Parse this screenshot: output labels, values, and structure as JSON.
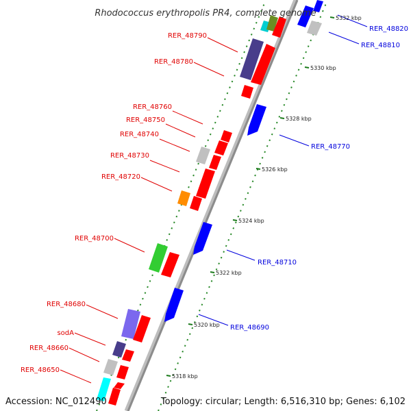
{
  "header": {
    "title": "Rhodococcus erythropolis PR4, complete genome"
  },
  "footer": {
    "accession": "Accession: NC_012490",
    "topology": "Topology: circular; Length: 6,516,310 bp; Genes: 6,102"
  },
  "colors": {
    "axis": "#8c8c8c",
    "tick_minor": "#2a8a2a",
    "label_left": "#e00000",
    "label_right": "#0000dd"
  },
  "ticks": [
    "5318 kbp",
    "5320 kbp",
    "5322 kbp",
    "5324 kbp",
    "5326 kbp",
    "5328 kbp",
    "5330 kbp",
    "5332 kbp"
  ],
  "genes": [
    {
      "id": "RER_48650",
      "label": "RER_48650",
      "side": "left",
      "color": "#00ffff"
    },
    {
      "id": "RER_48660",
      "label": "RER_48660",
      "side": "left",
      "color": "#c0c0c0"
    },
    {
      "id": "sodA",
      "label": "sodA",
      "side": "left",
      "color": "#483d8b"
    },
    {
      "id": "RER_48680",
      "label": "RER_48680",
      "side": "left",
      "color": "#7b68ee"
    },
    {
      "id": "RER_48690",
      "label": "RER_48690",
      "side": "right",
      "color": "#0000ff"
    },
    {
      "id": "RER_48700",
      "label": "RER_48700",
      "side": "left",
      "color": "#32cd32"
    },
    {
      "id": "RER_48710",
      "label": "RER_48710",
      "side": "right",
      "color": "#0000ff"
    },
    {
      "id": "RER_48720",
      "label": "RER_48720",
      "side": "left",
      "color": "#ff8c00"
    },
    {
      "id": "RER_48730",
      "label": "RER_48730",
      "side": "left",
      "color": "#ff0000"
    },
    {
      "id": "RER_48740",
      "label": "RER_48740",
      "side": "left",
      "color": "#c0c0c0"
    },
    {
      "id": "RER_48750",
      "label": "RER_48750",
      "side": "left",
      "color": "#ff0000"
    },
    {
      "id": "RER_48760",
      "label": "RER_48760",
      "side": "left",
      "color": "#ff0000"
    },
    {
      "id": "RER_48770",
      "label": "RER_48770",
      "side": "right",
      "color": "#0000ff"
    },
    {
      "id": "RER_48780",
      "label": "RER_48780",
      "side": "left",
      "color": "#ff0000"
    },
    {
      "id": "RER_48790",
      "label": "RER_48790",
      "side": "left",
      "color": "#483d8b"
    },
    {
      "id": "RER_48810",
      "label": "RER_48810",
      "side": "right",
      "color": "#c0c0c0"
    },
    {
      "id": "RER_48820",
      "label": "RER_48820",
      "side": "right",
      "color": "#0000ff"
    }
  ]
}
